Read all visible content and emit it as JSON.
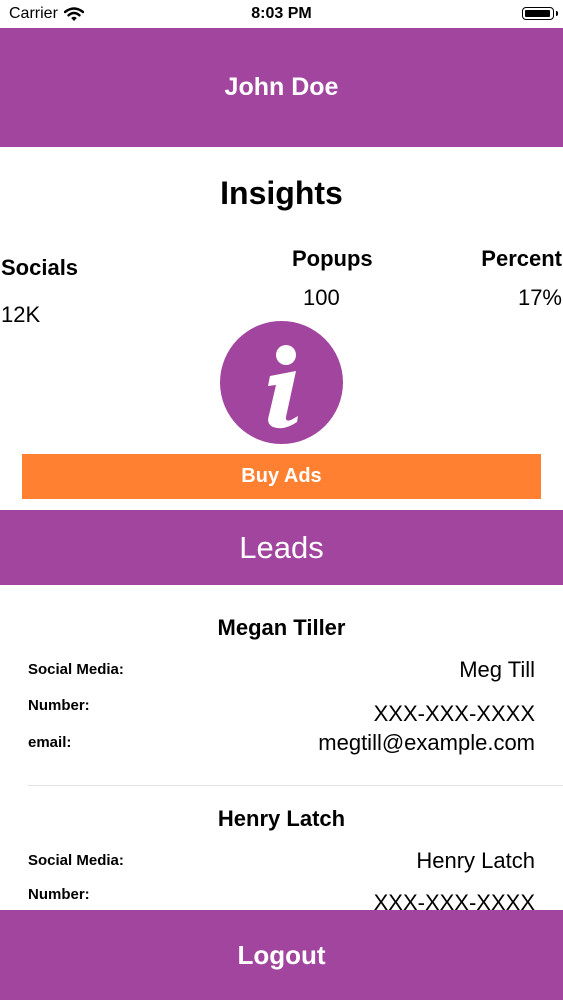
{
  "status_bar": {
    "carrier": "Carrier",
    "time": "8:03 PM",
    "battery_fraction": 1.0
  },
  "header": {
    "name": "John Doe"
  },
  "insights": {
    "title": "Insights",
    "stats": [
      {
        "label": "Socials",
        "value": "12K"
      },
      {
        "label": "Popups",
        "value": "100"
      },
      {
        "label": "Percent",
        "value": "17%"
      }
    ]
  },
  "buy_ads_label": "Buy Ads",
  "leads": {
    "title": "Leads",
    "field_labels": {
      "social": "Social Media:",
      "number": "Number:",
      "email": "email:"
    },
    "items": [
      {
        "name": "Megan Tiller",
        "social": "Meg Till",
        "number": "XXX-XXX-XXXX",
        "email": "megtill@example.com"
      },
      {
        "name": "Henry Latch",
        "social": "Henry Latch",
        "number": "XXX-XXX-XXXX",
        "email": ""
      }
    ]
  },
  "logout_label": "Logout",
  "colors": {
    "primary": "#a2459f",
    "accent": "#ff8030"
  },
  "icons": {
    "info": "info-icon",
    "wifi": "wifi-icon",
    "battery": "battery-icon"
  }
}
